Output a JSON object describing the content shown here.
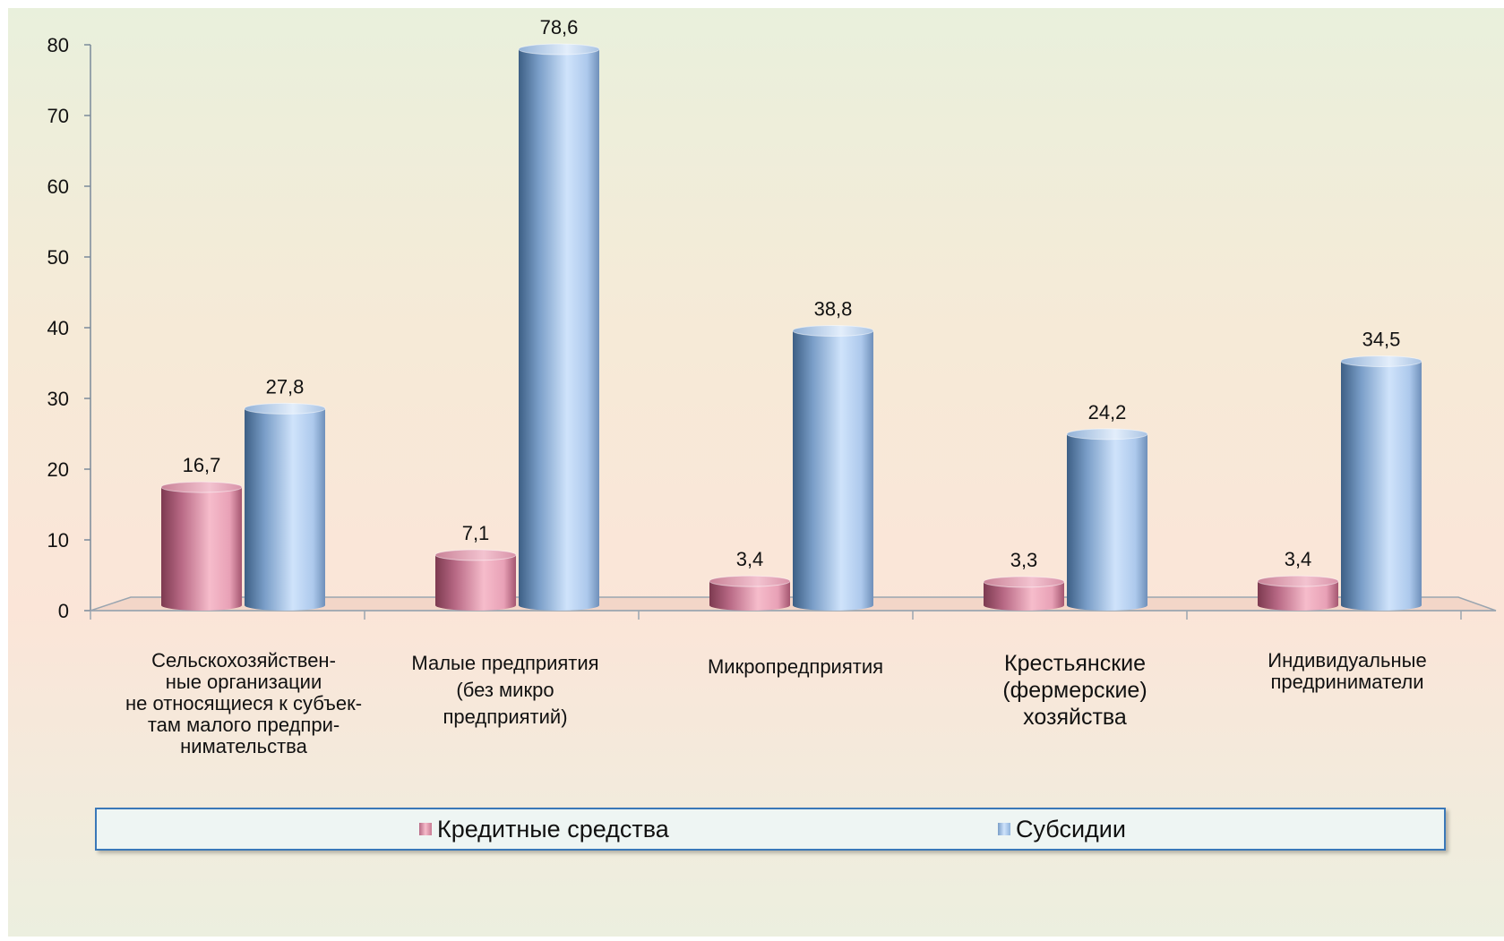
{
  "chart_data": {
    "type": "bar",
    "categories": [
      "Сельскохозяйствен-\nные  организации\nне относящиеся к субъек-\nтам малого предпри-\nнимательства",
      "Малые предприятия\n(без микро\nпредприятий)",
      "Микропредприятия",
      "Крестьянские\n(фермерские)\nхозяйства",
      "Индивидуальные\nпредриниматели"
    ],
    "series": [
      {
        "name": "Кредитные средства",
        "values": [
          16.7,
          7.1,
          3.4,
          3.3,
          3.4
        ],
        "labels": [
          "16,7",
          "7,1",
          "3,4",
          "3,3",
          "3,4"
        ],
        "color": "#c97a93"
      },
      {
        "name": "Субсидии",
        "values": [
          27.8,
          78.6,
          38.8,
          24.2,
          34.5
        ],
        "labels": [
          "27,8",
          "78,6",
          "38,8",
          "24,2",
          "34,5"
        ],
        "color": "#8fb3dc"
      }
    ],
    "ylim": [
      0,
      80
    ],
    "yticks": [
      "0",
      "10",
      "20",
      "30",
      "40",
      "50",
      "60",
      "70",
      "80"
    ],
    "title": "",
    "xlabel": "",
    "ylabel": "",
    "grid": false,
    "legend_position": "bottom"
  }
}
